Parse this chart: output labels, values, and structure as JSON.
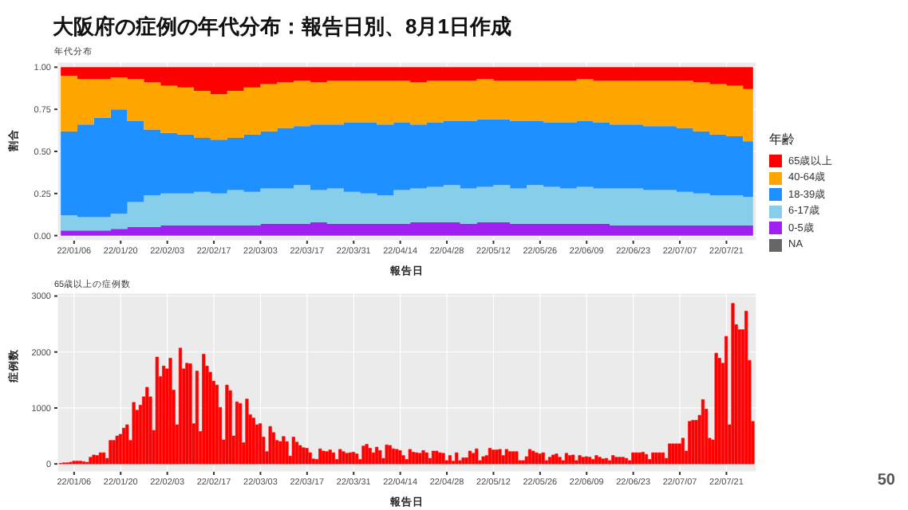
{
  "chart_data": [
    {
      "type": "area",
      "stacked": true,
      "title": "大阪府の症例の年代分布：報告日別、8月1日作成",
      "subtitle": "年代分布",
      "xlabel": "報告日",
      "ylabel": "割合",
      "legend_title": "年齢",
      "legend": "right",
      "grid": true,
      "x": [
        "--01-02",
        "--01-07",
        "--01-12",
        "--01-17",
        "--01-22",
        "--01-27",
        "--02-01",
        "--02-06",
        "--02-11",
        "--02-16",
        "--02-21",
        "--02-26",
        "--03-03",
        "--03-08",
        "--03-13",
        "--03-18",
        "--03-23",
        "--03-28",
        "--04-02",
        "--04-07",
        "--04-12",
        "--04-17",
        "--04-22",
        "--04-27",
        "--05-02",
        "--05-07",
        "--05-12",
        "--05-17",
        "--05-22",
        "--05-27",
        "--06-01",
        "--06-06",
        "--06-11",
        "--06-16",
        "--06-21",
        "--06-26",
        "--07-01",
        "--07-06",
        "--07-11",
        "--07-16",
        "--07-21",
        "--07-26",
        "--07-29"
      ],
      "series": [
        {
          "name": "NA",
          "color": "#666666",
          "values": [
            null,
            null,
            null,
            null,
            null,
            null,
            null,
            null,
            null,
            null,
            null,
            null,
            null,
            null,
            null,
            null,
            null,
            null,
            null,
            null,
            null,
            null,
            null,
            null,
            null,
            null,
            null,
            null,
            null,
            null,
            null,
            null,
            null,
            null,
            null,
            null,
            null,
            null,
            null,
            null,
            null,
            null,
            null
          ]
        },
        {
          "name": "0-5歳",
          "color": "#a020f0",
          "values": [
            0.03,
            0.03,
            0.03,
            0.04,
            0.05,
            0.05,
            0.06,
            0.06,
            0.06,
            0.06,
            0.06,
            0.06,
            0.07,
            0.07,
            0.07,
            0.08,
            0.07,
            0.07,
            0.07,
            0.07,
            0.07,
            0.08,
            0.08,
            0.08,
            0.07,
            0.08,
            0.08,
            0.07,
            0.07,
            0.07,
            0.07,
            0.07,
            0.07,
            0.06,
            0.06,
            0.06,
            0.06,
            0.06,
            0.06,
            0.06,
            0.06,
            0.06,
            0.06
          ]
        },
        {
          "name": "6-17歳",
          "color": "#87ceeb",
          "values": [
            0.09,
            0.08,
            0.08,
            0.09,
            0.15,
            0.19,
            0.19,
            0.19,
            0.2,
            0.19,
            0.21,
            0.2,
            0.21,
            0.21,
            0.23,
            0.19,
            0.21,
            0.19,
            0.18,
            0.17,
            0.2,
            0.2,
            0.21,
            0.22,
            0.21,
            0.21,
            0.22,
            0.21,
            0.23,
            0.22,
            0.21,
            0.22,
            0.21,
            0.22,
            0.22,
            0.21,
            0.21,
            0.2,
            0.19,
            0.18,
            0.18,
            0.17,
            0.16
          ]
        },
        {
          "name": "18-39歳",
          "color": "#1e90ff",
          "values": [
            0.5,
            0.55,
            0.59,
            0.62,
            0.48,
            0.39,
            0.36,
            0.35,
            0.32,
            0.32,
            0.31,
            0.34,
            0.34,
            0.36,
            0.35,
            0.39,
            0.38,
            0.41,
            0.42,
            0.42,
            0.4,
            0.38,
            0.38,
            0.38,
            0.4,
            0.4,
            0.39,
            0.4,
            0.38,
            0.38,
            0.39,
            0.39,
            0.39,
            0.38,
            0.38,
            0.38,
            0.38,
            0.38,
            0.37,
            0.36,
            0.35,
            0.33,
            0.32
          ]
        },
        {
          "name": "40-64歳",
          "color": "#ffa500",
          "values": [
            0.33,
            0.27,
            0.23,
            0.19,
            0.25,
            0.28,
            0.28,
            0.28,
            0.28,
            0.27,
            0.28,
            0.28,
            0.28,
            0.27,
            0.27,
            0.25,
            0.26,
            0.25,
            0.25,
            0.26,
            0.25,
            0.25,
            0.25,
            0.24,
            0.24,
            0.24,
            0.23,
            0.24,
            0.24,
            0.25,
            0.25,
            0.25,
            0.25,
            0.26,
            0.26,
            0.27,
            0.27,
            0.28,
            0.29,
            0.3,
            0.3,
            0.31,
            0.32
          ]
        },
        {
          "name": "65歳以上",
          "color": "#ff0000",
          "values": [
            0.05,
            0.07,
            0.07,
            0.06,
            0.07,
            0.09,
            0.11,
            0.12,
            0.14,
            0.16,
            0.14,
            0.12,
            0.1,
            0.09,
            0.08,
            0.09,
            0.08,
            0.08,
            0.08,
            0.08,
            0.08,
            0.09,
            0.08,
            0.08,
            0.08,
            0.07,
            0.08,
            0.08,
            0.08,
            0.08,
            0.08,
            0.07,
            0.08,
            0.08,
            0.08,
            0.08,
            0.08,
            0.08,
            0.09,
            0.1,
            0.11,
            0.13,
            0.14
          ]
        }
      ],
      "xlim": [
        "--01-01",
        "--07-30"
      ],
      "xticks": [
        {
          "value": "--01-06",
          "label": "22/01/06"
        },
        {
          "value": "--01-20",
          "label": "22/01/20"
        },
        {
          "value": "--02-03",
          "label": "22/02/03"
        },
        {
          "value": "--02-17",
          "label": "22/02/17"
        },
        {
          "value": "--03-03",
          "label": "22/03/03"
        },
        {
          "value": "--03-17",
          "label": "22/03/17"
        },
        {
          "value": "--03-31",
          "label": "22/03/31"
        },
        {
          "value": "--04-14",
          "label": "22/04/14"
        },
        {
          "value": "--04-28",
          "label": "22/04/28"
        },
        {
          "value": "--05-12",
          "label": "22/05/12"
        },
        {
          "value": "--05-26",
          "label": "22/05/26"
        },
        {
          "value": "--06-09",
          "label": "22/06/09"
        },
        {
          "value": "--06-23",
          "label": "22/06/23"
        },
        {
          "value": "--07-07",
          "label": "22/07/07"
        },
        {
          "value": "--07-21",
          "label": "22/07/21"
        }
      ],
      "ylim": [
        -0.03,
        1.03
      ],
      "yticks": [
        {
          "value": 0,
          "label": "0.00"
        },
        {
          "value": 0.25,
          "label": "0.25"
        },
        {
          "value": 0.5,
          "label": "0.50"
        },
        {
          "value": 0.75,
          "label": "0.75"
        },
        {
          "value": 1,
          "label": "1.00"
        }
      ]
    },
    {
      "type": "bar",
      "title": "65歳以上の症例数",
      "xlabel": "報告日",
      "ylabel": "症例数",
      "grid": true,
      "color": "#ff0000",
      "annotations": [
        "50"
      ],
      "x": [
        "--01-02",
        "--01-03",
        "--01-04",
        "--01-05",
        "--01-06",
        "--01-07",
        "--01-08",
        "--01-09",
        "--01-10",
        "--01-11",
        "--01-12",
        "--01-13",
        "--01-14",
        "--01-15",
        "--01-16",
        "--01-17",
        "--01-18",
        "--01-19",
        "--01-20",
        "--01-21",
        "--01-22",
        "--01-23",
        "--01-24",
        "--01-25",
        "--01-26",
        "--01-27",
        "--01-28",
        "--01-29",
        "--01-30",
        "--01-31",
        "--02-01",
        "--02-02",
        "--02-03",
        "--02-04",
        "--02-05",
        "--02-06",
        "--02-07",
        "--02-08",
        "--02-09",
        "--02-10",
        "--02-11",
        "--02-12",
        "--02-13",
        "--02-14",
        "--02-15",
        "--02-16",
        "--02-17",
        "--02-18",
        "--02-19",
        "--02-20",
        "--02-21",
        "--02-22",
        "--02-23",
        "--02-24",
        "--02-25",
        "--02-26",
        "--02-27",
        "--02-28",
        "--03-01",
        "--03-02",
        "--03-03",
        "--03-04",
        "--03-05",
        "--03-06",
        "--03-07",
        "--03-08",
        "--03-09",
        "--03-10",
        "--03-11",
        "--03-12",
        "--03-13",
        "--03-14",
        "--03-15",
        "--03-16",
        "--03-17",
        "--03-18",
        "--03-19",
        "--03-20",
        "--03-21",
        "--03-22",
        "--03-23",
        "--03-24",
        "--03-25",
        "--03-26",
        "--03-27",
        "--03-28",
        "--03-29",
        "--03-30",
        "--03-31",
        "--04-01",
        "--04-02",
        "--04-03",
        "--04-04",
        "--04-05",
        "--04-06",
        "--04-07",
        "--04-08",
        "--04-09",
        "--04-10",
        "--04-11",
        "--04-12",
        "--04-13",
        "--04-14",
        "--04-15",
        "--04-16",
        "--04-17",
        "--04-18",
        "--04-19",
        "--04-20",
        "--04-21",
        "--04-22",
        "--04-23",
        "--04-24",
        "--04-25",
        "--04-26",
        "--04-27",
        "--04-28",
        "--04-29",
        "--04-30",
        "--05-01",
        "--05-02",
        "--05-03",
        "--05-04",
        "--05-05",
        "--05-06",
        "--05-07",
        "--05-08",
        "--05-09",
        "--05-10",
        "--05-11",
        "--05-12",
        "--05-13",
        "--05-14",
        "--05-15",
        "--05-16",
        "--05-17",
        "--05-18",
        "--05-19",
        "--05-20",
        "--05-21",
        "--05-22",
        "--05-23",
        "--05-24",
        "--05-25",
        "--05-26",
        "--05-27",
        "--05-28",
        "--05-29",
        "--05-30",
        "--05-31",
        "--06-01",
        "--06-02",
        "--06-03",
        "--06-04",
        "--06-05",
        "--06-06",
        "--06-07",
        "--06-08",
        "--06-09",
        "--06-10",
        "--06-11",
        "--06-12",
        "--06-13",
        "--06-14",
        "--06-15",
        "--06-16",
        "--06-17",
        "--06-18",
        "--06-19",
        "--06-20",
        "--06-21",
        "--06-22",
        "--06-23",
        "--06-24",
        "--06-25",
        "--06-26",
        "--06-27",
        "--06-28",
        "--06-29",
        "--06-30",
        "--07-01",
        "--07-02",
        "--07-03",
        "--07-04",
        "--07-05",
        "--07-06",
        "--07-07",
        "--07-08",
        "--07-09",
        "--07-10",
        "--07-11",
        "--07-12",
        "--07-13",
        "--07-14",
        "--07-15",
        "--07-16",
        "--07-17",
        "--07-18",
        "--07-19",
        "--07-20",
        "--07-21",
        "--07-22",
        "--07-23",
        "--07-24",
        "--07-25",
        "--07-26",
        "--07-27",
        "--07-28",
        "--07-29"
      ],
      "values": [
        10,
        20,
        20,
        30,
        50,
        50,
        50,
        40,
        30,
        120,
        160,
        150,
        200,
        200,
        100,
        420,
        420,
        500,
        530,
        640,
        700,
        420,
        1100,
        960,
        1050,
        1200,
        1370,
        1200,
        600,
        1910,
        1560,
        1750,
        1700,
        1890,
        1320,
        700,
        2070,
        1700,
        1800,
        1790,
        720,
        1660,
        580,
        1960,
        1750,
        1640,
        1480,
        1410,
        1010,
        430,
        1410,
        1310,
        500,
        1110,
        1080,
        380,
        1160,
        880,
        820,
        700,
        720,
        480,
        220,
        670,
        560,
        420,
        400,
        490,
        400,
        140,
        480,
        390,
        330,
        290,
        280,
        200,
        90,
        80,
        270,
        230,
        220,
        250,
        200,
        80,
        260,
        220,
        190,
        200,
        210,
        180,
        80,
        320,
        350,
        280,
        200,
        300,
        240,
        100,
        340,
        330,
        270,
        260,
        240,
        150,
        80,
        260,
        210,
        200,
        190,
        240,
        200,
        100,
        230,
        230,
        200,
        190,
        60,
        150,
        50,
        200,
        60,
        110,
        110,
        230,
        190,
        270,
        60,
        130,
        150,
        280,
        250,
        250,
        260,
        150,
        260,
        220,
        220,
        220,
        60,
        60,
        130,
        260,
        230,
        200,
        180,
        200,
        60,
        120,
        160,
        180,
        120,
        60,
        190,
        150,
        160,
        60,
        150,
        120,
        130,
        120,
        80,
        150,
        120,
        90,
        100,
        60,
        150,
        120,
        120,
        120,
        100,
        60,
        200,
        200,
        200,
        210,
        170,
        80,
        200,
        200,
        200,
        200,
        100,
        360,
        360,
        360,
        360,
        460,
        230,
        760,
        780,
        780,
        870,
        1150,
        980,
        460,
        430,
        1980,
        1890,
        1800,
        2280,
        700,
        2870,
        2490,
        2400,
        2400,
        2730,
        1850,
        760
      ],
      "xlim": [
        "--01-01",
        "--07-30"
      ],
      "xticks": [
        {
          "value": "--01-06",
          "label": "22/01/06"
        },
        {
          "value": "--01-20",
          "label": "22/01/20"
        },
        {
          "value": "--02-03",
          "label": "22/02/03"
        },
        {
          "value": "--02-17",
          "label": "22/02/17"
        },
        {
          "value": "--03-03",
          "label": "22/03/03"
        },
        {
          "value": "--03-17",
          "label": "22/03/17"
        },
        {
          "value": "--03-31",
          "label": "22/03/31"
        },
        {
          "value": "--04-14",
          "label": "22/04/14"
        },
        {
          "value": "--04-28",
          "label": "22/04/28"
        },
        {
          "value": "--05-12",
          "label": "22/05/12"
        },
        {
          "value": "--05-26",
          "label": "22/05/26"
        },
        {
          "value": "--06-09",
          "label": "22/06/09"
        },
        {
          "value": "--06-23",
          "label": "22/06/23"
        },
        {
          "value": "--07-07",
          "label": "22/07/07"
        },
        {
          "value": "--07-21",
          "label": "22/07/21"
        }
      ],
      "ylim": [
        -140,
        3050
      ],
      "yticks": [
        0,
        1000,
        2000,
        3000
      ]
    }
  ]
}
